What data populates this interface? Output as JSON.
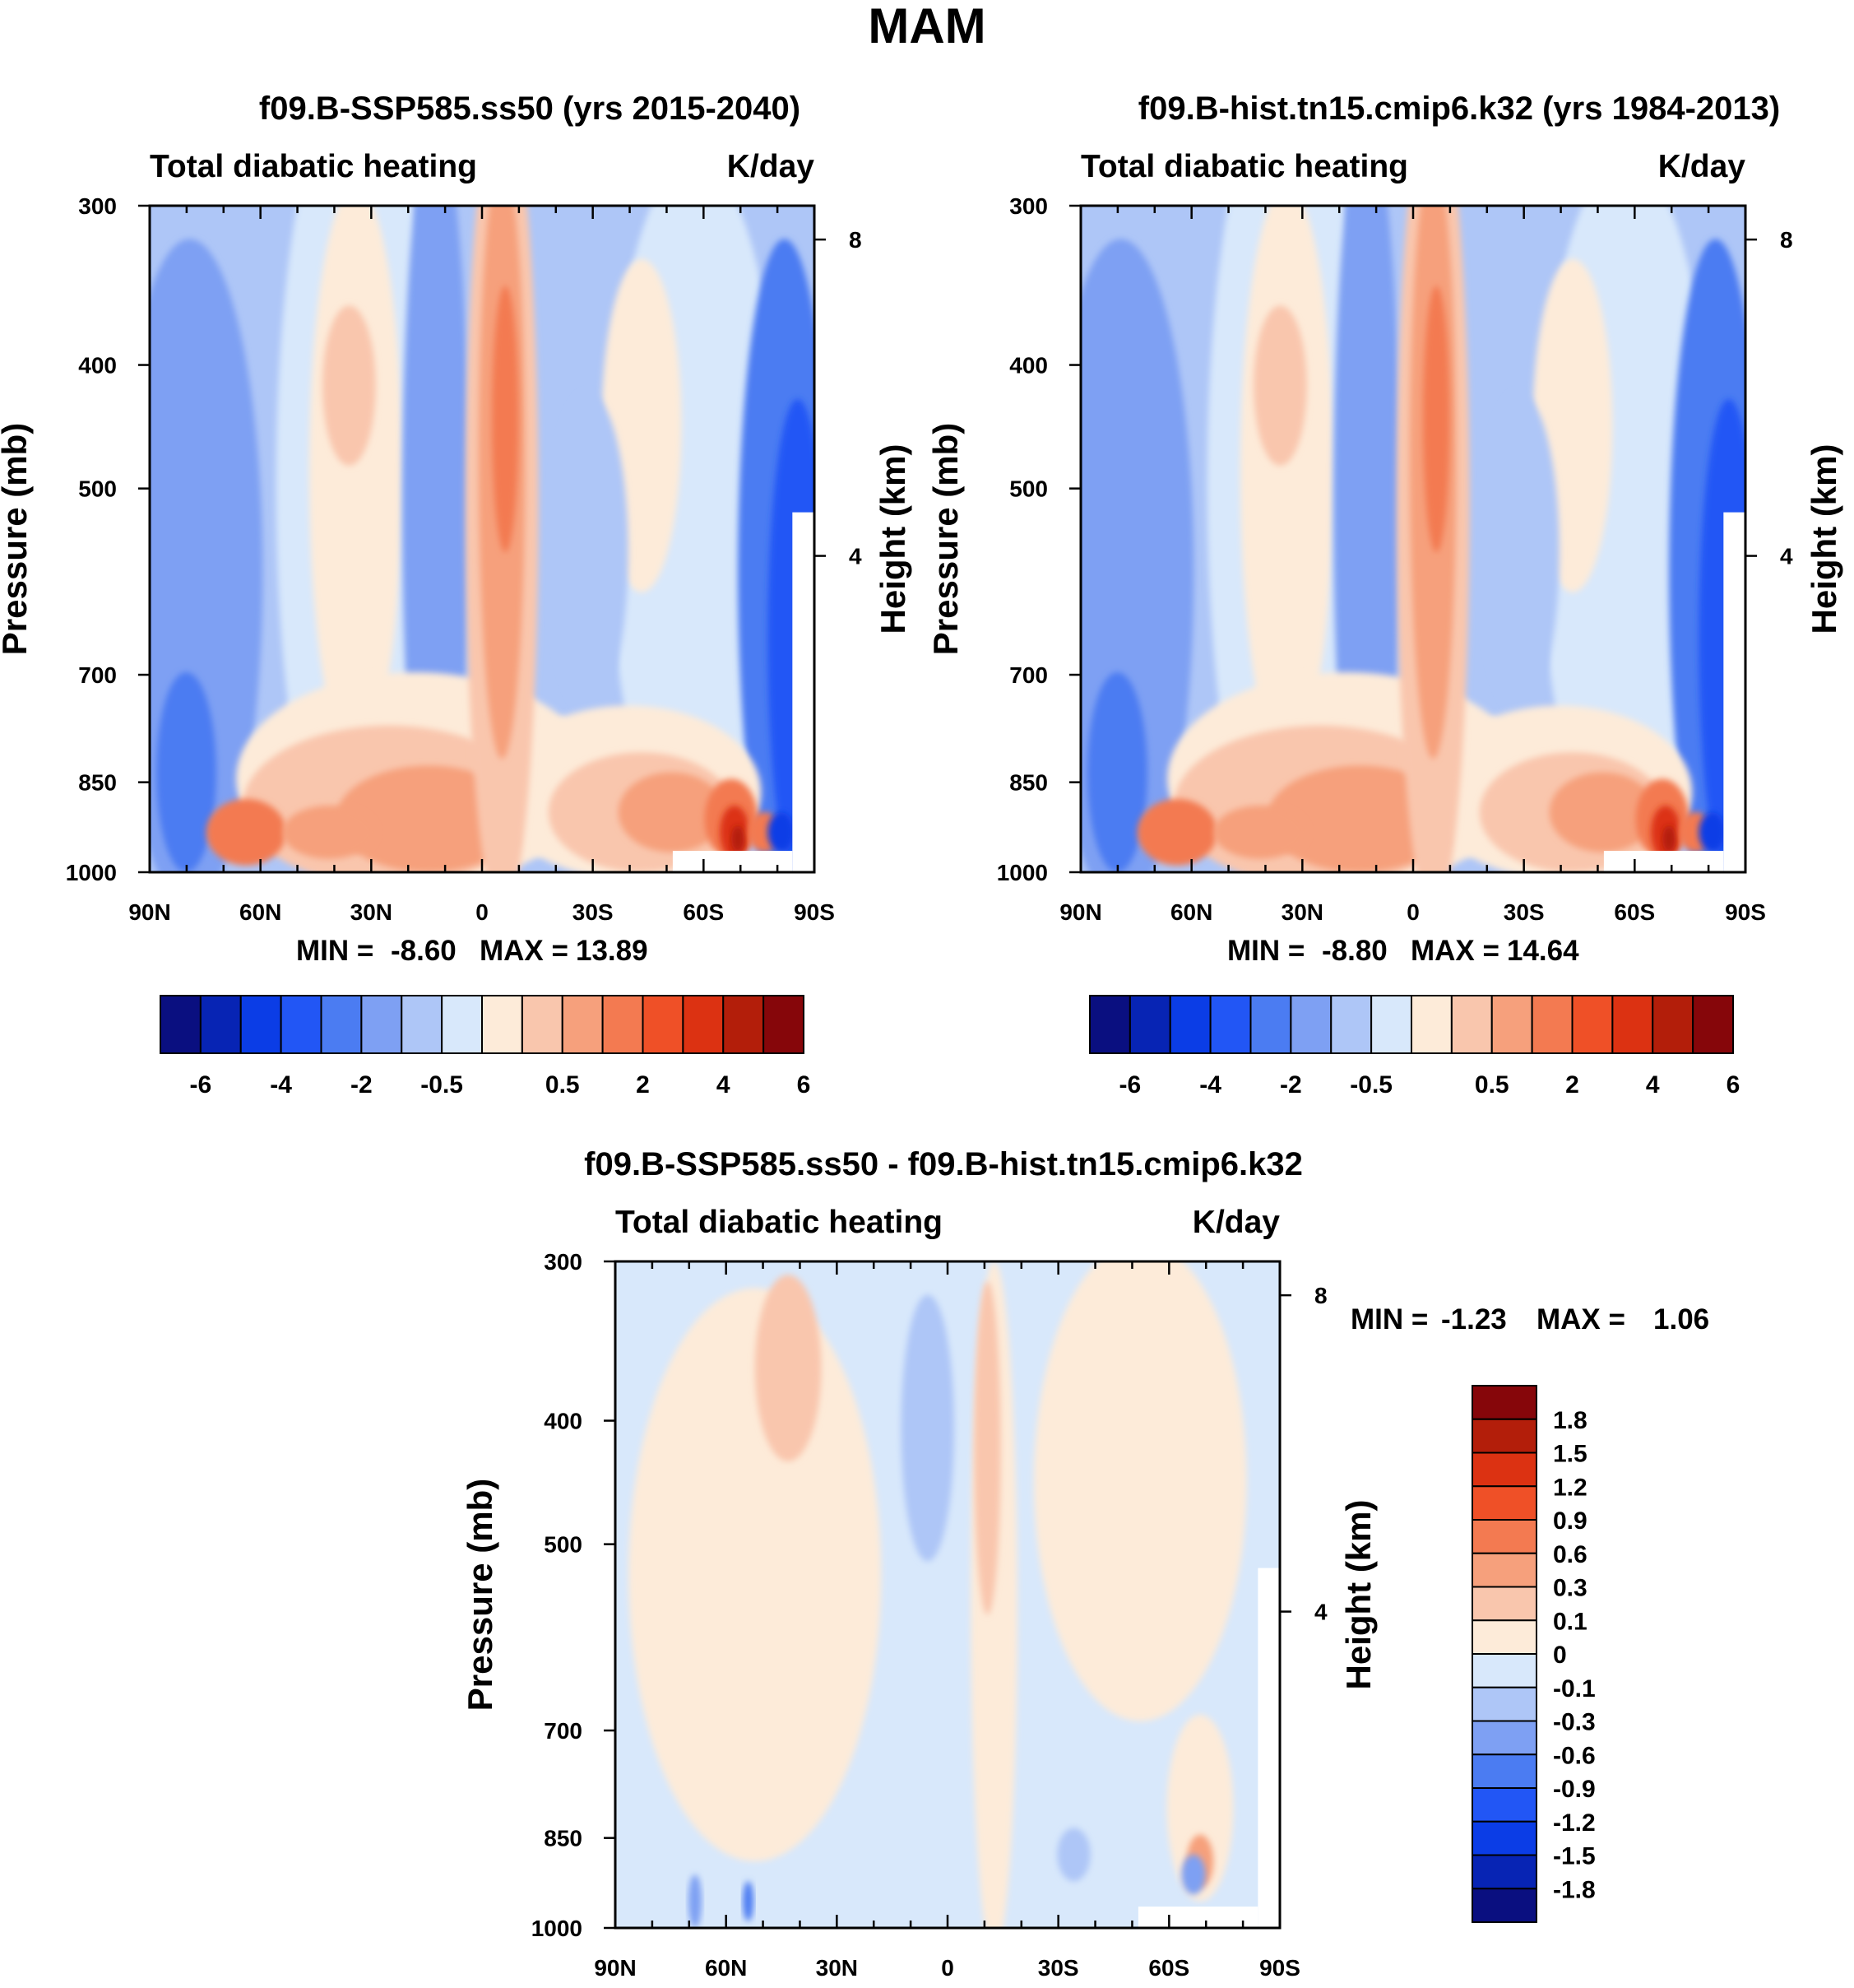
{
  "figure_title": "MAM",
  "chart_data": [
    {
      "type": "heatmap",
      "title": "f09.B-SSP585.ss50 (yrs 2015-2040)",
      "left_label": "Total diabatic heating",
      "right_label": "K/day",
      "xlabel": "",
      "ylabel": "Pressure (mb)",
      "ylabel_right": "Height (km)",
      "x_ticks": [
        "90N",
        "60N",
        "30N",
        "0",
        "30S",
        "60S",
        "90S"
      ],
      "x_values": [
        90,
        60,
        30,
        0,
        -30,
        -60,
        -90
      ],
      "y_ticks": [
        "300",
        "400",
        "500",
        "700",
        "850",
        "1000"
      ],
      "y_values": [
        300,
        400,
        500,
        700,
        850,
        1000
      ],
      "y_right_ticks": [
        "8",
        "4"
      ],
      "y_right_values": [
        8,
        4
      ],
      "xlim": [
        90,
        -90
      ],
      "ylim": [
        1000,
        300
      ],
      "stats": {
        "min_label": "MIN =",
        "min": "-8.60",
        "max_label": "MAX =",
        "max": "13.89"
      },
      "colorbar": {
        "orientation": "horizontal",
        "colors": [
          "#0a0f80",
          "#0724b4",
          "#0b3de6",
          "#2256f5",
          "#4b7cf2",
          "#7ea0f3",
          "#aec6f7",
          "#d8e8fb",
          "#fdebd9",
          "#f9c6ad",
          "#f6a07c",
          "#f37a51",
          "#ef5027",
          "#dc3212",
          "#b31e0a",
          "#86060a"
        ],
        "labels": [
          "-6",
          "-4",
          "-2",
          "-0.5",
          "0.5",
          "2",
          "4",
          "6"
        ]
      }
    },
    {
      "type": "heatmap",
      "title": "f09.B-hist.tn15.cmip6.k32 (yrs 1984-2013)",
      "left_label": "Total diabatic heating",
      "right_label": "K/day",
      "xlabel": "",
      "ylabel": "Pressure (mb)",
      "ylabel_right": "Height (km)",
      "x_ticks": [
        "90N",
        "60N",
        "30N",
        "0",
        "30S",
        "60S",
        "90S"
      ],
      "x_values": [
        90,
        60,
        30,
        0,
        -30,
        -60,
        -90
      ],
      "y_ticks": [
        "300",
        "400",
        "500",
        "700",
        "850",
        "1000"
      ],
      "y_values": [
        300,
        400,
        500,
        700,
        850,
        1000
      ],
      "y_right_ticks": [
        "8",
        "4"
      ],
      "y_right_values": [
        8,
        4
      ],
      "xlim": [
        90,
        -90
      ],
      "ylim": [
        1000,
        300
      ],
      "stats": {
        "min_label": "MIN =",
        "min": "-8.80",
        "max_label": "MAX =",
        "max": "14.64"
      },
      "colorbar": {
        "orientation": "horizontal",
        "colors": [
          "#0a0f80",
          "#0724b4",
          "#0b3de6",
          "#2256f5",
          "#4b7cf2",
          "#7ea0f3",
          "#aec6f7",
          "#d8e8fb",
          "#fdebd9",
          "#f9c6ad",
          "#f6a07c",
          "#f37a51",
          "#ef5027",
          "#dc3212",
          "#b31e0a",
          "#86060a"
        ],
        "labels": [
          "-6",
          "-4",
          "-2",
          "-0.5",
          "0.5",
          "2",
          "4",
          "6"
        ]
      }
    },
    {
      "type": "heatmap",
      "title": "f09.B-SSP585.ss50 - f09.B-hist.tn15.cmip6.k32",
      "left_label": "Total diabatic heating",
      "right_label": "K/day",
      "xlabel": "",
      "ylabel": "Pressure (mb)",
      "ylabel_right": "Height (km)",
      "x_ticks": [
        "90N",
        "60N",
        "30N",
        "0",
        "30S",
        "60S",
        "90S"
      ],
      "x_values": [
        90,
        60,
        30,
        0,
        -30,
        -60,
        -90
      ],
      "y_ticks": [
        "300",
        "400",
        "500",
        "700",
        "850",
        "1000"
      ],
      "y_values": [
        300,
        400,
        500,
        700,
        850,
        1000
      ],
      "y_right_ticks": [
        "8",
        "4"
      ],
      "y_right_values": [
        8,
        4
      ],
      "xlim": [
        90,
        -90
      ],
      "ylim": [
        1000,
        300
      ],
      "stats": {
        "min_label": "MIN =",
        "min": "-1.23",
        "max_label": "MAX =",
        "max": "1.06"
      },
      "colorbar": {
        "orientation": "vertical",
        "colors_top_to_bottom": [
          "#86060a",
          "#b31e0a",
          "#dc3212",
          "#ef5027",
          "#f37a51",
          "#f6a07c",
          "#f9c6ad",
          "#fdebd9",
          "#d8e8fb",
          "#aec6f7",
          "#7ea0f3",
          "#4b7cf2",
          "#2256f5",
          "#0b3de6",
          "#0724b4",
          "#0a0f80"
        ],
        "labels": [
          "1.8",
          "1.5",
          "1.2",
          "0.9",
          "0.6",
          "0.3",
          "0.1",
          "0",
          "-0.1",
          "-0.3",
          "-0.6",
          "-0.9",
          "-1.2",
          "-1.5",
          "-1.8"
        ]
      }
    }
  ]
}
